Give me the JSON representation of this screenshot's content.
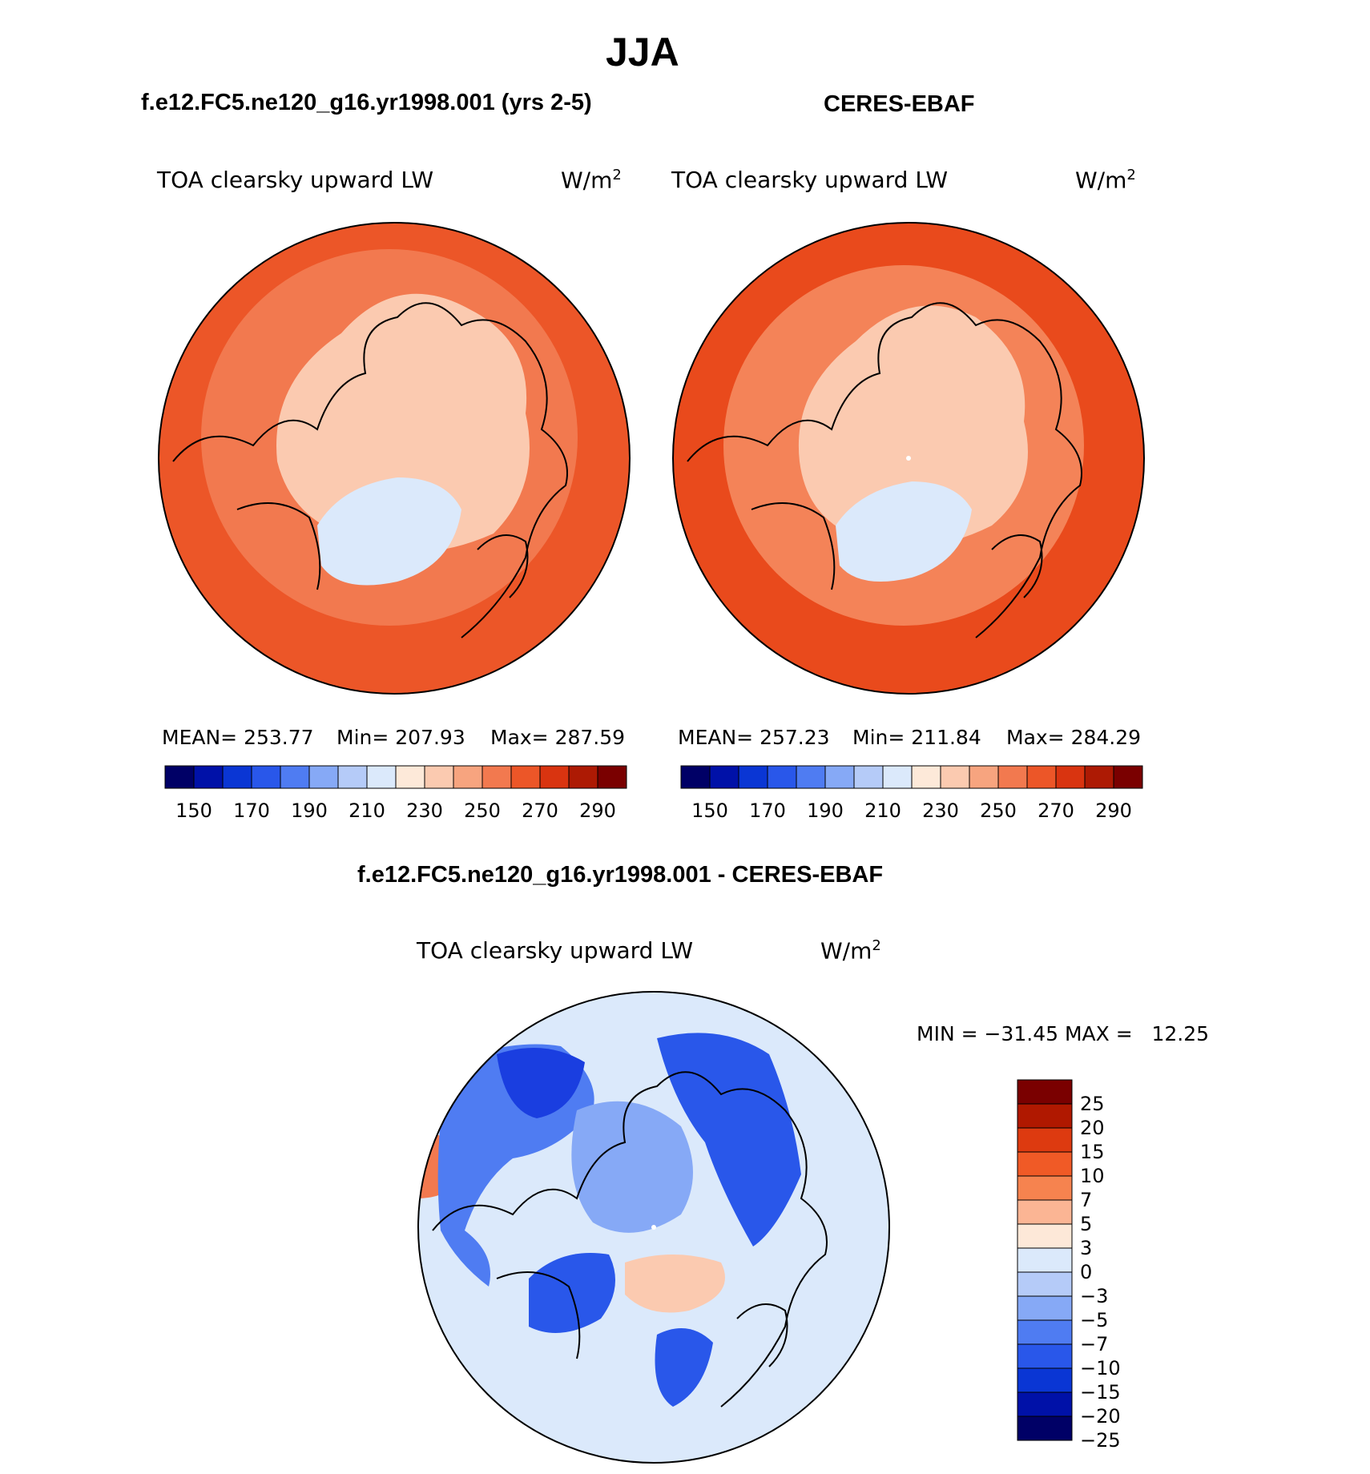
{
  "season": "JJA",
  "panels": {
    "model": {
      "title": "f.e12.FC5.ne120_g16.yr1998.001 (yrs 2-5)",
      "variable": "TOA clearsky upward LW",
      "units": "W/m",
      "units_sup": "2",
      "mean": "MEAN= 253.77",
      "min": "Min= 207.93",
      "max": "Max= 287.59"
    },
    "obs": {
      "title": "CERES-EBAF",
      "variable": "TOA clearsky upward LW",
      "units": "W/m",
      "units_sup": "2",
      "mean": "MEAN= 257.23",
      "min": "Min= 211.84",
      "max": "Max= 284.29"
    },
    "diff": {
      "title": "f.e12.FC5.ne120_g16.yr1998.001 - CERES-EBAF",
      "variable": "TOA clearsky upward LW",
      "units": "W/m",
      "units_sup": "2",
      "minmax": "MIN = −31.45 MAX =   12.25"
    }
  },
  "colorbar_abs": {
    "colors": [
      "#000066",
      "#0011a8",
      "#0a36d4",
      "#2957ea",
      "#4f7cf2",
      "#86a9f6",
      "#b5cbf8",
      "#dbe9fb",
      "#fde9d9",
      "#fbcab0",
      "#f7a47f",
      "#f2794f",
      "#ec5628",
      "#d93410",
      "#ad1a04",
      "#7a0000"
    ],
    "labels": [
      "150",
      "170",
      "190",
      "210",
      "230",
      "250",
      "270",
      "290"
    ]
  },
  "colorbar_diff": {
    "colors": [
      "#7a0000",
      "#b01800",
      "#dd3a10",
      "#f05a26",
      "#f6834f",
      "#fbb594",
      "#fde8d8",
      "#dbe9fb",
      "#b5cbf8",
      "#86a9f6",
      "#4f7cf2",
      "#2957ea",
      "#0a36d4",
      "#0011a8",
      "#000066"
    ],
    "labels": [
      "25",
      "20",
      "15",
      "10",
      "7",
      "5",
      "3",
      "0",
      "−3",
      "−5",
      "−7",
      "−10",
      "−15",
      "−20",
      "−25"
    ]
  },
  "map_colors": {
    "outer_model": "#ec5628",
    "outer_obs": "#e94a1c",
    "ring_model": "#f2794f",
    "ring_obs": "#f48358",
    "arctic": "#fbcab0",
    "greenland": "#dbe9fb",
    "diff_base": "#dbe9fb",
    "diff_blue": "#4f7cf2",
    "diff_darkblue": "#1a3ee0",
    "diff_mid": "#86a9f6",
    "diff_warm": "#fbcab0"
  }
}
